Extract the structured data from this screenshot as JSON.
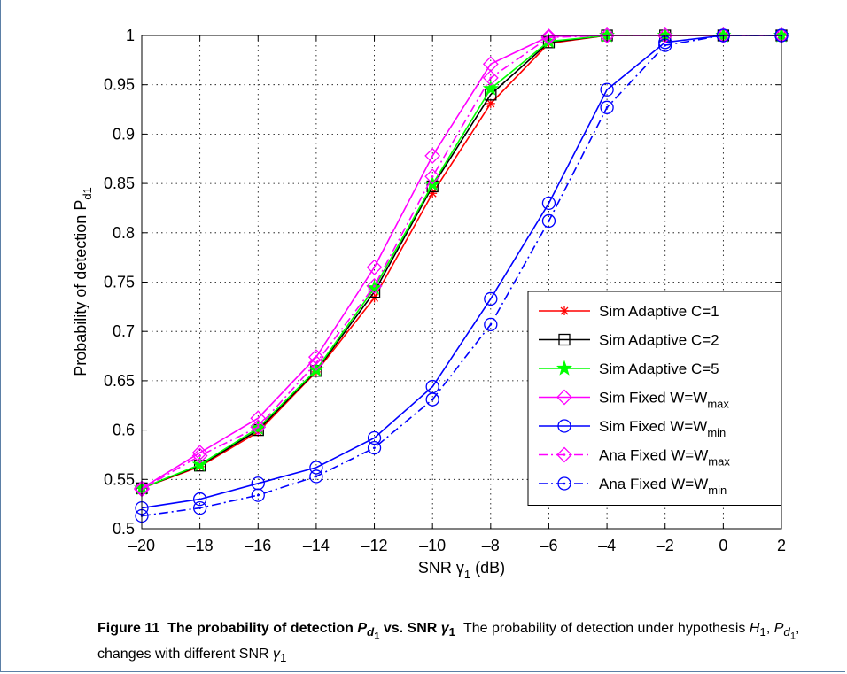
{
  "chart_data": {
    "type": "line",
    "xlabel": "SNR γ",
    "xlabel_sub": "1",
    "xlabel_unit": " (dB)",
    "ylabel": "Probability of detection P",
    "ylabel_sub": "d1",
    "xlim": [
      -20,
      2
    ],
    "ylim": [
      0.5,
      1
    ],
    "x_ticks": [
      -20,
      -18,
      -16,
      -14,
      -12,
      -10,
      -8,
      -6,
      -4,
      -2,
      0,
      2
    ],
    "x_tick_labels": [
      "–20",
      "–18",
      "–16",
      "–14",
      "–12",
      "–10",
      "–8",
      "–6",
      "–4",
      "–2",
      "0",
      "2"
    ],
    "y_ticks": [
      0.5,
      0.55,
      0.6,
      0.65,
      0.7,
      0.75,
      0.8,
      0.85,
      0.9,
      0.95,
      1
    ],
    "y_tick_labels": [
      "0.5",
      "0.55",
      "0.6",
      "0.65",
      "0.7",
      "0.75",
      "0.8",
      "0.85",
      "0.9",
      "0.95",
      "1"
    ],
    "grid": true,
    "legend_position": "lower-right",
    "x": [
      -20,
      -18,
      -16,
      -14,
      -12,
      -10,
      -8,
      -6,
      -4,
      -2,
      0,
      2
    ],
    "series": [
      {
        "name": "Sim Adaptive C=1",
        "sub": "",
        "color": "#ff0000",
        "marker": "star",
        "dash": "solid",
        "values": [
          0.541,
          0.563,
          0.598,
          0.659,
          0.734,
          0.84,
          0.931,
          0.992,
          1.0,
          1.0,
          1.0,
          1.0
        ]
      },
      {
        "name": "Sim Adaptive C=2",
        "sub": "",
        "color": "#000000",
        "marker": "square",
        "dash": "solid",
        "values": [
          0.541,
          0.564,
          0.6,
          0.66,
          0.74,
          0.847,
          0.94,
          0.993,
          1.0,
          1.0,
          1.0,
          1.0
        ]
      },
      {
        "name": "Sim Adaptive C=5",
        "sub": "",
        "color": "#00ff00",
        "marker": "pentagram",
        "dash": "solid",
        "values": [
          0.541,
          0.565,
          0.602,
          0.661,
          0.744,
          0.849,
          0.946,
          0.994,
          1.0,
          1.0,
          1.0,
          1.0
        ]
      },
      {
        "name": "Sim Fixed W=W",
        "sub": "max",
        "color": "#ff00ff",
        "marker": "diamond",
        "dash": "solid",
        "values": [
          0.541,
          0.577,
          0.612,
          0.674,
          0.765,
          0.878,
          0.971,
          0.999,
          1.0,
          1.0,
          1.0,
          1.0
        ]
      },
      {
        "name": "Sim Fixed W=W",
        "sub": "min",
        "color": "#0000ff",
        "marker": "circle",
        "dash": "solid",
        "values": [
          0.521,
          0.53,
          0.546,
          0.562,
          0.592,
          0.644,
          0.733,
          0.83,
          0.945,
          0.993,
          1.0,
          1.0
        ]
      },
      {
        "name": "Ana Fixed W=W",
        "sub": "max",
        "color": "#ff00ff",
        "marker": "diamond-dot",
        "dash": "dashdot",
        "values": [
          0.54,
          0.574,
          0.603,
          0.668,
          0.746,
          0.857,
          0.957,
          0.998,
          1.0,
          1.0,
          1.0,
          1.0
        ]
      },
      {
        "name": "Ana Fixed W=W",
        "sub": "min",
        "color": "#0000ff",
        "marker": "circle-dot",
        "dash": "dashdot",
        "values": [
          0.513,
          0.521,
          0.534,
          0.553,
          0.582,
          0.631,
          0.707,
          0.812,
          0.927,
          0.99,
          1.0,
          1.0
        ]
      }
    ]
  },
  "caption": {
    "label": "Figure 11",
    "title_text": "The probability of detection",
    "title_var": "P",
    "title_var_sub": "d",
    "title_var_subsub": "1",
    "title_vs": "vs. SNR",
    "title_gamma": "γ",
    "title_gamma_sub": "1",
    "body_1": "The probability of detection under hypothesis",
    "body_h": "H",
    "body_h_sub": "1",
    "body_p": "P",
    "body_p_sub": "d",
    "body_p_subsub": "1",
    "body_2": ", changes with different SNR",
    "body_gamma": "γ",
    "body_gamma_sub": "1"
  }
}
